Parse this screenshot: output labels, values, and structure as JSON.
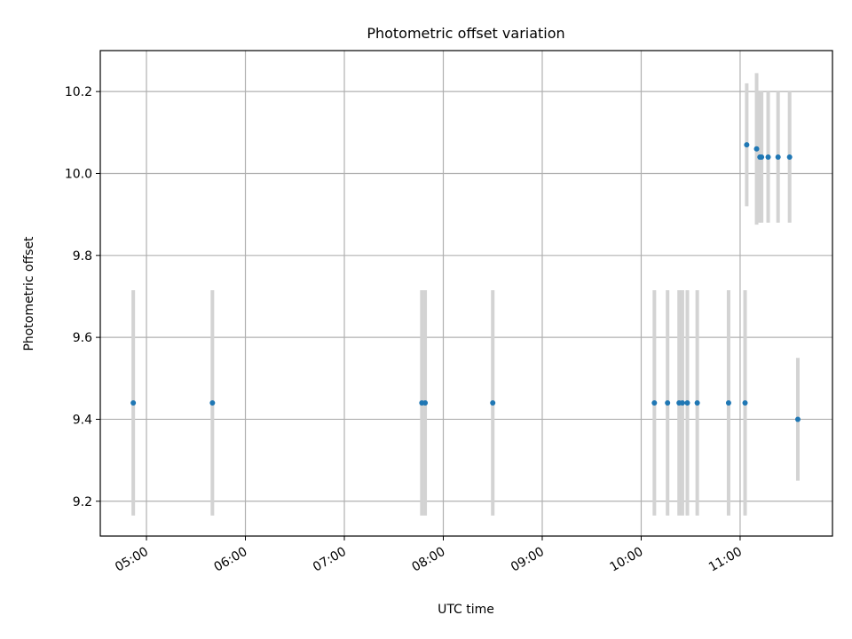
{
  "chart_data": {
    "type": "scatter",
    "title": "Photometric offset variation",
    "xlabel": "UTC time",
    "ylabel": "Photometric offset",
    "x_scale": "time",
    "xlim": [
      "04:32",
      "11:56"
    ],
    "ylim": [
      9.115,
      10.3
    ],
    "xticks": [
      "05:00",
      "06:00",
      "07:00",
      "08:00",
      "09:00",
      "10:00",
      "11:00"
    ],
    "yticks": [
      "9.2",
      "9.4",
      "9.6",
      "9.8",
      "10.0",
      "10.2"
    ],
    "grid": true,
    "colors": {
      "points": "#1f77b4",
      "error_bars": "#d3d3d3",
      "grid": "#b0b0b0"
    },
    "points": [
      {
        "x": "04:52",
        "y": 9.44,
        "yerr": 0.275
      },
      {
        "x": "05:40",
        "y": 9.44,
        "yerr": 0.275
      },
      {
        "x": "07:47",
        "y": 9.44,
        "yerr": 0.275
      },
      {
        "x": "07:49",
        "y": 9.44,
        "yerr": 0.275
      },
      {
        "x": "08:30",
        "y": 9.44,
        "yerr": 0.275
      },
      {
        "x": "10:08",
        "y": 9.44,
        "yerr": 0.275
      },
      {
        "x": "10:16",
        "y": 9.44,
        "yerr": 0.275
      },
      {
        "x": "10:23",
        "y": 9.44,
        "yerr": 0.275
      },
      {
        "x": "10:25",
        "y": 9.44,
        "yerr": 0.275
      },
      {
        "x": "10:28",
        "y": 9.44,
        "yerr": 0.275
      },
      {
        "x": "10:34",
        "y": 9.44,
        "yerr": 0.275
      },
      {
        "x": "10:53",
        "y": 9.44,
        "yerr": 0.275
      },
      {
        "x": "11:03",
        "y": 9.44,
        "yerr": 0.275
      },
      {
        "x": "11:04",
        "y": 10.07,
        "yerr": 0.15
      },
      {
        "x": "11:10",
        "y": 10.06,
        "yerr": 0.185
      },
      {
        "x": "11:12",
        "y": 10.04,
        "yerr": 0.16
      },
      {
        "x": "11:13",
        "y": 10.04,
        "yerr": 0.16
      },
      {
        "x": "11:17",
        "y": 10.04,
        "yerr": 0.16
      },
      {
        "x": "11:23",
        "y": 10.04,
        "yerr": 0.16
      },
      {
        "x": "11:30",
        "y": 10.04,
        "yerr": 0.16
      },
      {
        "x": "11:35",
        "y": 9.4,
        "yerr": 0.15
      }
    ]
  }
}
